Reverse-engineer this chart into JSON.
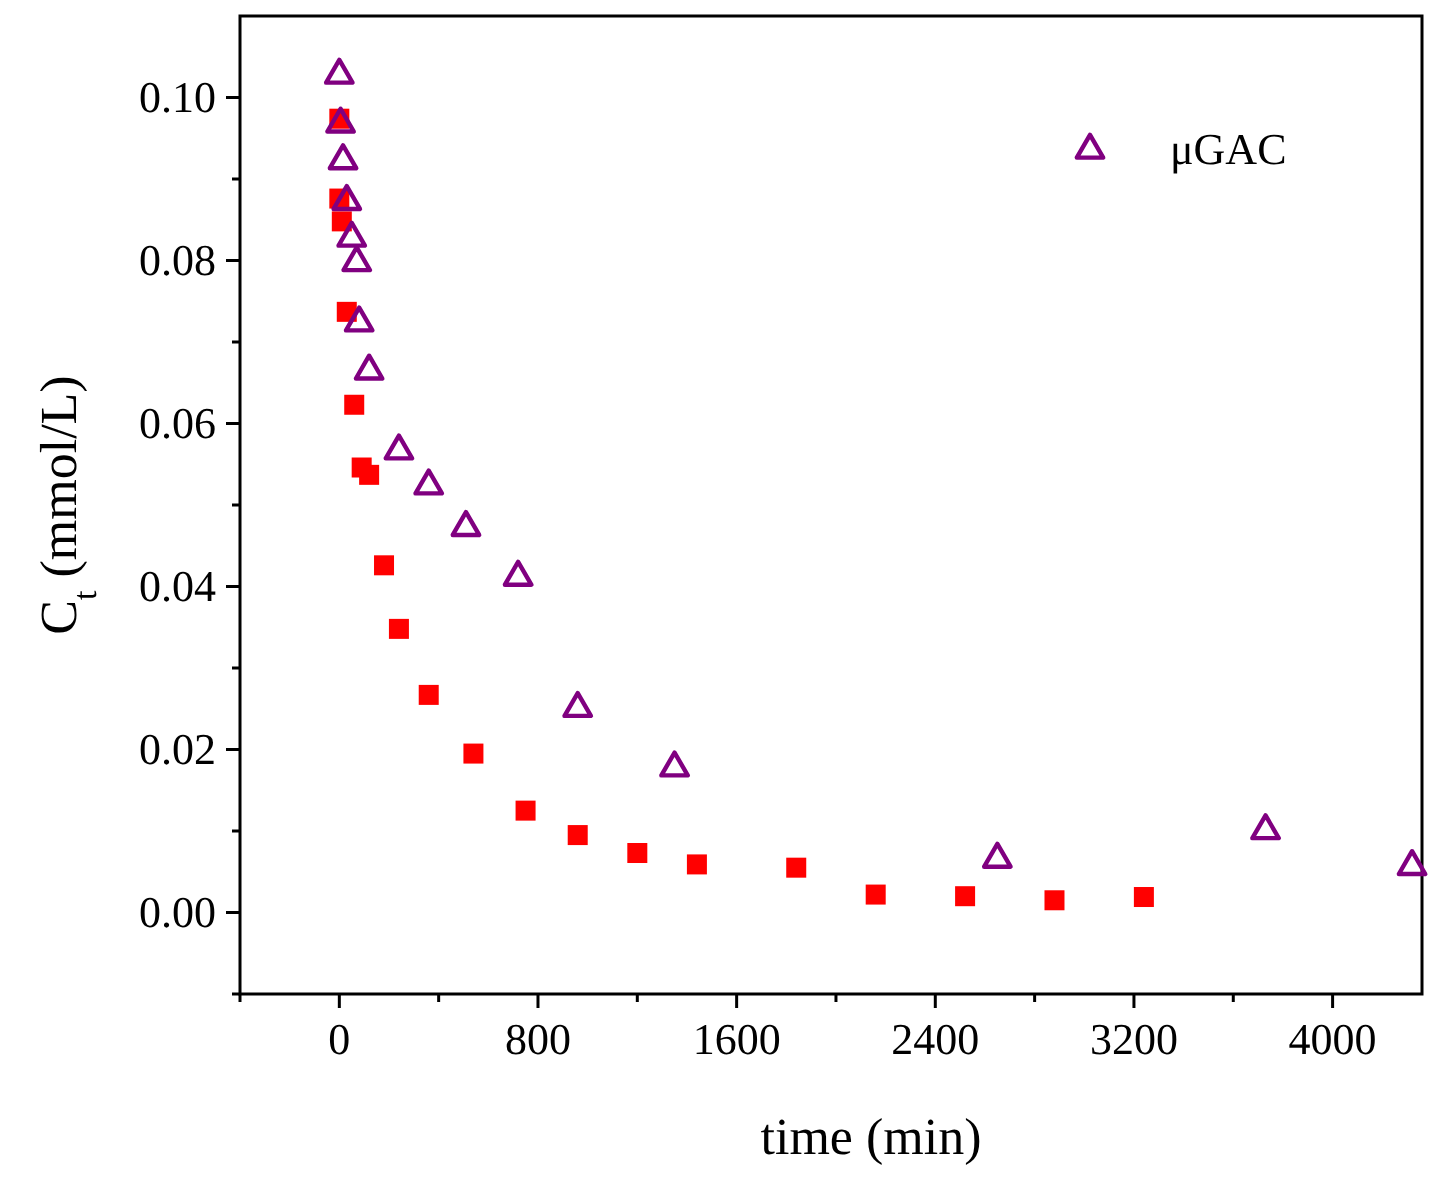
{
  "chart_data": {
    "type": "scatter",
    "xlabel": "time (min)",
    "ylabel": "C$_{t}$ (mmol/L)",
    "xlim": [
      -400,
      4360
    ],
    "ylim": [
      -0.01,
      0.11
    ],
    "xticks": [
      0,
      {
        "value": 400,
        "label": null
      },
      800,
      {
        "value": 1200,
        "label": null
      },
      1600,
      {
        "value": 2000,
        "label": null
      },
      2400,
      {
        "value": 2800,
        "label": null
      },
      3200,
      {
        "value": 3600,
        "label": null
      },
      4000,
      {
        "value": -400,
        "label": null
      }
    ],
    "yticks": [
      {
        "value": -0.01,
        "label": null
      },
      "0.00",
      {
        "value": 0.01,
        "label": null
      },
      {
        "value": 0.02,
        "label": "0.02"
      },
      {
        "value": 0.03,
        "label": null
      },
      {
        "value": 0.04,
        "label": "0.04"
      },
      {
        "value": 0.05,
        "label": null
      },
      {
        "value": 0.06,
        "label": "0.06"
      },
      {
        "value": 0.07,
        "label": null
      },
      {
        "value": 0.08,
        "label": "0.08"
      },
      {
        "value": 0.09,
        "label": null
      },
      {
        "value": 0.1,
        "label": "0.10"
      }
    ],
    "grid": false,
    "legend": "top right",
    "series": [
      {
        "color": "#ff0000",
        "marker": "square",
        "x": [
          0,
          0,
          10,
          30,
          60,
          90,
          120,
          180,
          240,
          360,
          540,
          750,
          960,
          1200,
          1440,
          1840,
          2160,
          2520,
          2880,
          3240
        ],
        "values": [
          0.0974,
          0.0876,
          0.0848,
          0.0737,
          0.0623,
          0.0546,
          0.0537,
          0.0426,
          0.0348,
          0.0267,
          0.0195,
          0.0125,
          0.0095,
          0.0073,
          0.0059,
          0.0055,
          0.0022,
          0.002,
          0.0015,
          0.0019
        ]
      },
      {
        "name": "μGAC",
        "color": "#800080",
        "marker": "triangle",
        "x": [
          0,
          5,
          15,
          30,
          50,
          70,
          80,
          120,
          240,
          360,
          510,
          720,
          960,
          1350,
          2650,
          3730,
          4320
        ],
        "values": [
          0.103,
          0.097,
          0.0925,
          0.0875,
          0.083,
          0.08,
          0.0726,
          0.0667,
          0.0569,
          0.0526,
          0.0475,
          0.0414,
          0.0253,
          0.018,
          0.0068,
          0.0103,
          0.0059
        ]
      }
    ]
  }
}
